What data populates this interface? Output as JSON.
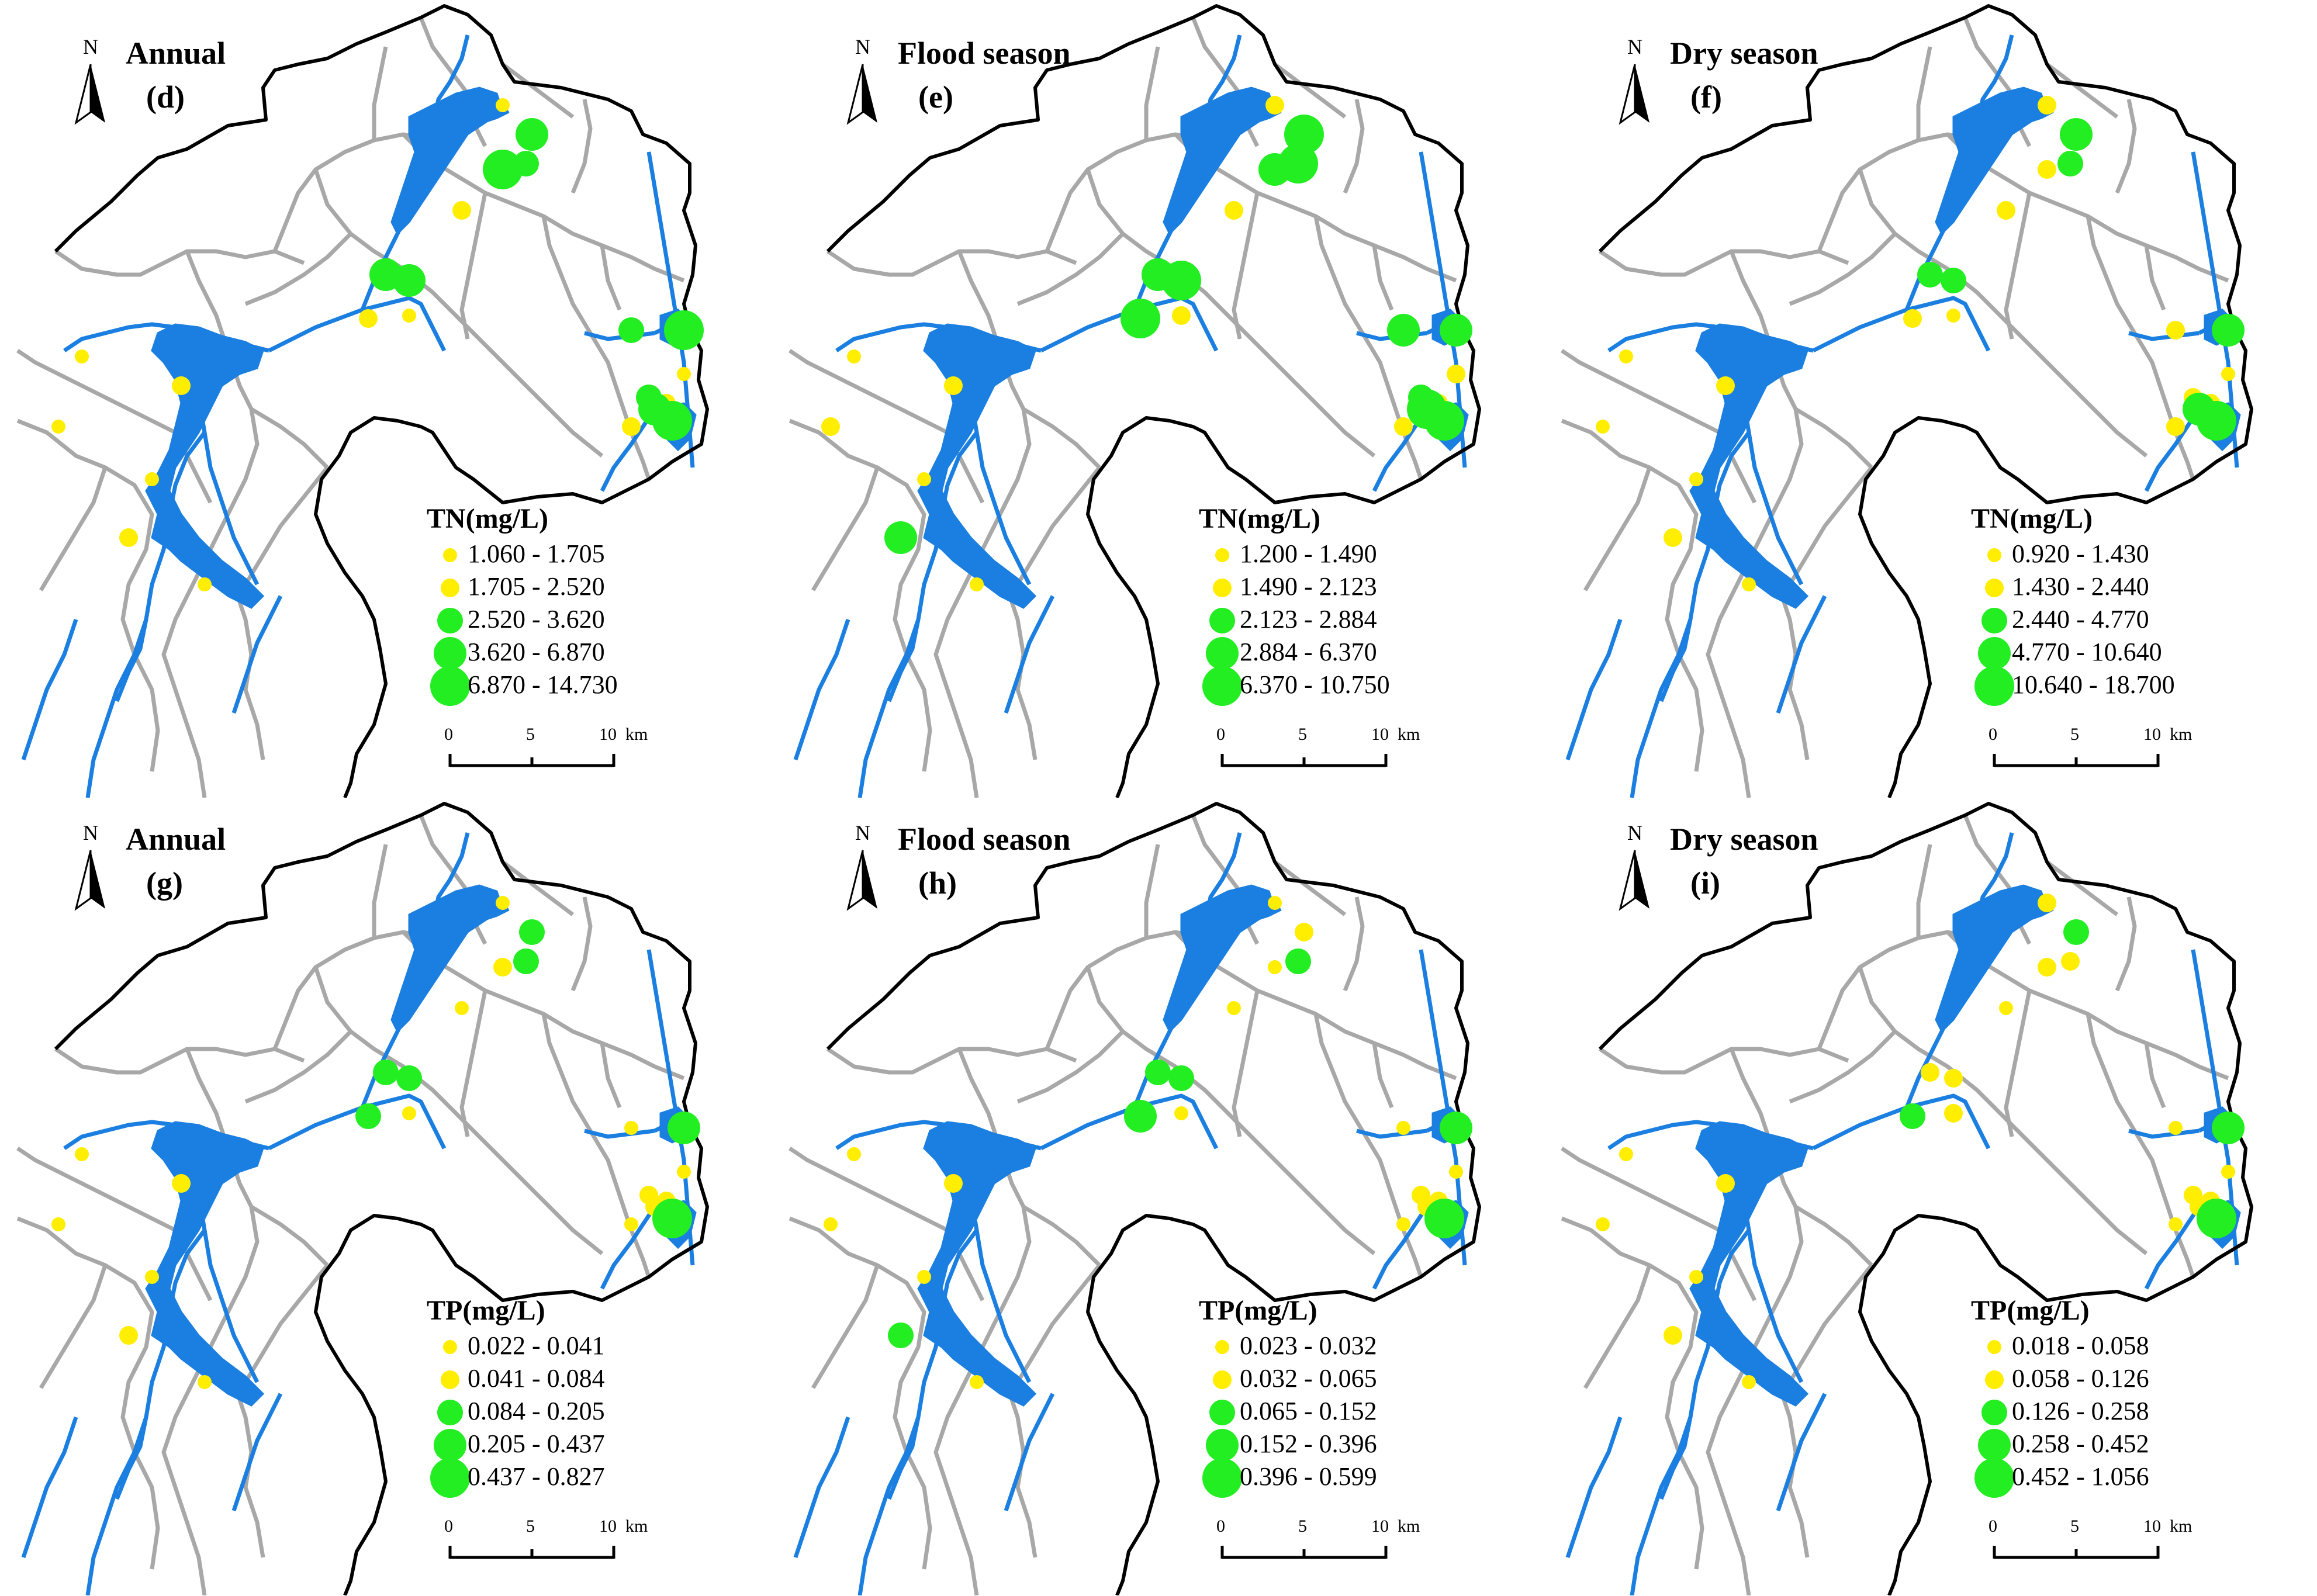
{
  "figure": {
    "panels": [
      {
        "id": "d",
        "season": "Annual",
        "letter": "(d)",
        "param": "TN(mg/L)",
        "classes": [
          "1.060 - 1.705",
          "1.705 - 2.520",
          "2.520 - 3.620",
          "3.620 - 6.870",
          "6.870 - 14.730"
        ],
        "points": [
          [
            0,
            0
          ],
          [
            1,
            3
          ],
          [
            2,
            2
          ],
          [
            3,
            4
          ],
          [
            4,
            1
          ],
          [
            5,
            0
          ],
          [
            6,
            3
          ],
          [
            7,
            3
          ],
          [
            8,
            1
          ],
          [
            9,
            4
          ],
          [
            10,
            2
          ],
          [
            11,
            0
          ],
          [
            12,
            2
          ],
          [
            13,
            1
          ],
          [
            14,
            3
          ],
          [
            15,
            4
          ],
          [
            16,
            1
          ],
          [
            17,
            0
          ],
          [
            18,
            1
          ],
          [
            19,
            0
          ],
          [
            20,
            0
          ],
          [
            21,
            1
          ],
          [
            22,
            0
          ]
        ]
      },
      {
        "id": "e",
        "season": "Flood season",
        "letter": "(e)",
        "param": "TN(mg/L)",
        "classes": [
          "1.200 - 1.490",
          "1.490 - 2.123",
          "2.123 - 2.884",
          "2.884 - 6.370",
          "6.370 - 10.750"
        ],
        "points": [
          [
            0,
            1
          ],
          [
            1,
            4
          ],
          [
            2,
            4
          ],
          [
            3,
            3
          ],
          [
            4,
            1
          ],
          [
            5,
            1
          ],
          [
            6,
            3
          ],
          [
            7,
            4
          ],
          [
            8,
            4
          ],
          [
            9,
            3
          ],
          [
            10,
            3
          ],
          [
            11,
            1
          ],
          [
            12,
            2
          ],
          [
            13,
            1
          ],
          [
            14,
            4
          ],
          [
            15,
            4
          ],
          [
            16,
            1
          ],
          [
            17,
            0
          ],
          [
            18,
            1
          ],
          [
            19,
            1
          ],
          [
            20,
            0
          ],
          [
            21,
            3
          ],
          [
            22,
            0
          ]
        ]
      },
      {
        "id": "f",
        "season": "Dry season",
        "letter": "(f)",
        "param": "TN(mg/L)",
        "classes": [
          "0.920 - 1.430",
          "1.430 - 2.440",
          "2.440 - 4.770",
          "4.770 - 10.640",
          "10.640 - 18.700"
        ],
        "points": [
          [
            0,
            1
          ],
          [
            1,
            3
          ],
          [
            2,
            2
          ],
          [
            3,
            1
          ],
          [
            4,
            1
          ],
          [
            5,
            0
          ],
          [
            6,
            2
          ],
          [
            7,
            2
          ],
          [
            8,
            1
          ],
          [
            9,
            3
          ],
          [
            10,
            1
          ],
          [
            11,
            0
          ],
          [
            12,
            1
          ],
          [
            13,
            1
          ],
          [
            14,
            3
          ],
          [
            15,
            4
          ],
          [
            16,
            1
          ],
          [
            17,
            0
          ],
          [
            18,
            1
          ],
          [
            19,
            0
          ],
          [
            20,
            0
          ],
          [
            21,
            1
          ],
          [
            22,
            0
          ]
        ]
      },
      {
        "id": "g",
        "season": "Annual",
        "letter": "(g)",
        "param": "TP(mg/L)",
        "classes": [
          "0.022 - 0.041",
          "0.041 - 0.084",
          "0.084 - 0.205",
          "0.205 - 0.437",
          "0.437 - 0.827"
        ],
        "points": [
          [
            0,
            0
          ],
          [
            1,
            2
          ],
          [
            2,
            2
          ],
          [
            3,
            1
          ],
          [
            4,
            0
          ],
          [
            5,
            0
          ],
          [
            6,
            2
          ],
          [
            7,
            2
          ],
          [
            8,
            2
          ],
          [
            9,
            3
          ],
          [
            10,
            0
          ],
          [
            11,
            0
          ],
          [
            12,
            1
          ],
          [
            13,
            1
          ],
          [
            14,
            1
          ],
          [
            15,
            4
          ],
          [
            16,
            0
          ],
          [
            17,
            0
          ],
          [
            18,
            1
          ],
          [
            19,
            0
          ],
          [
            20,
            0
          ],
          [
            21,
            1
          ],
          [
            22,
            0
          ]
        ]
      },
      {
        "id": "h",
        "season": "Flood season",
        "letter": "(h)",
        "param": "TP(mg/L)",
        "classes": [
          "0.023 - 0.032",
          "0.032 - 0.065",
          "0.065 - 0.152",
          "0.152 - 0.396",
          "0.396 - 0.599"
        ],
        "points": [
          [
            0,
            0
          ],
          [
            1,
            1
          ],
          [
            2,
            2
          ],
          [
            3,
            0
          ],
          [
            4,
            0
          ],
          [
            5,
            0
          ],
          [
            6,
            2
          ],
          [
            7,
            2
          ],
          [
            8,
            3
          ],
          [
            9,
            3
          ],
          [
            10,
            0
          ],
          [
            11,
            0
          ],
          [
            12,
            1
          ],
          [
            13,
            1
          ],
          [
            14,
            1
          ],
          [
            15,
            4
          ],
          [
            16,
            0
          ],
          [
            17,
            0
          ],
          [
            18,
            1
          ],
          [
            19,
            0
          ],
          [
            20,
            0
          ],
          [
            21,
            2
          ],
          [
            22,
            0
          ]
        ]
      },
      {
        "id": "i",
        "season": "Dry season",
        "letter": "(i)",
        "param": "TP(mg/L)",
        "classes": [
          "0.018 - 0.058",
          "0.058 - 0.126",
          "0.126 - 0.258",
          "0.258 - 0.452",
          "0.452 - 1.056"
        ],
        "points": [
          [
            0,
            1
          ],
          [
            1,
            2
          ],
          [
            2,
            1
          ],
          [
            3,
            1
          ],
          [
            4,
            0
          ],
          [
            5,
            1
          ],
          [
            6,
            1
          ],
          [
            7,
            1
          ],
          [
            8,
            2
          ],
          [
            9,
            3
          ],
          [
            10,
            0
          ],
          [
            11,
            0
          ],
          [
            12,
            1
          ],
          [
            13,
            1
          ],
          [
            14,
            1
          ],
          [
            15,
            4
          ],
          [
            16,
            0
          ],
          [
            17,
            0
          ],
          [
            18,
            1
          ],
          [
            19,
            0
          ],
          [
            20,
            0
          ],
          [
            21,
            1
          ],
          [
            22,
            0
          ]
        ]
      }
    ],
    "symbol_colors": [
      "#ffee00",
      "#ffee00",
      "#22ee22",
      "#22ee22",
      "#22ee22"
    ],
    "north_label": "N",
    "scalebar_ticks": [
      "0",
      "5",
      "10",
      "km"
    ],
    "colors": {
      "water": "#1a7fe0",
      "boundary": "#000000",
      "subbasin": "#a8a8a8",
      "background": "#ffffff"
    }
  }
}
